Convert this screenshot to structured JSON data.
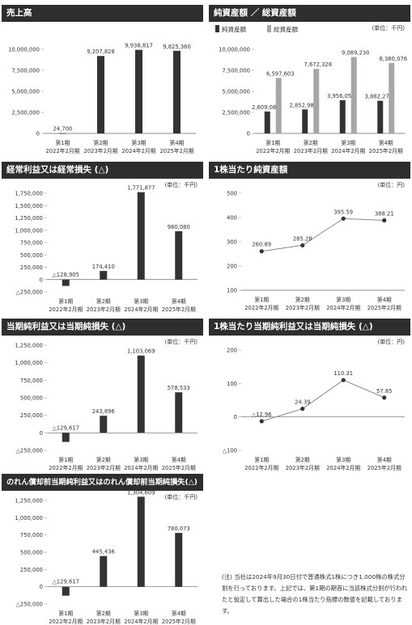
{
  "colors": {
    "header_bg": "#2e2e2e",
    "bar_dark": "#333333",
    "bar_light": "#a6a6a6",
    "line": "#888888",
    "point": "#333333"
  },
  "chart_data": [
    {
      "id": "c1",
      "type": "bar",
      "title": "売上高",
      "unit": "",
      "categories": [
        "第1期\n2022年2月期",
        "第2期\n2023年2月期",
        "第3期\n2024年2月期",
        "第4期\n2025年2月期"
      ],
      "series": [
        {
          "values": [
            24700,
            9207828,
            9938817,
            9825360
          ],
          "labels": [
            "24,700",
            "9,207,828",
            "9,938,817",
            "9,825,360"
          ]
        }
      ],
      "ylim": [
        0,
        10000000
      ],
      "yticks": [
        0,
        2500000,
        5000000,
        7500000,
        10000000
      ],
      "yticklabels": [
        "0",
        "2,500,000",
        "5,000,000",
        "7,500,000",
        "10,000,000"
      ]
    },
    {
      "id": "c2",
      "type": "bar",
      "title": "純資産額 ／ 総資産額",
      "unit": "(単位：千円)",
      "legend": [
        "純資産額",
        "総資産額"
      ],
      "categories": [
        "第1期\n2022年2月期",
        "第2期\n2023年2月期",
        "第3期\n2024年2月期",
        "第4期\n2025年2月期"
      ],
      "series": [
        {
          "name": "純資産額",
          "values": [
            2609087,
            2852983,
            3956053,
            3882271
          ],
          "labels": [
            "2,609,087",
            "2,852,983",
            "3,956,053",
            "3,882,271"
          ]
        },
        {
          "name": "総資産額",
          "values": [
            6597603,
            7672328,
            9089230,
            8380076
          ],
          "labels": [
            "6,597,603",
            "7,672,328",
            "9,089,230",
            "8,380,076"
          ]
        }
      ],
      "ylim": [
        0,
        10000000
      ],
      "yticks": [
        0,
        2500000,
        5000000,
        7500000,
        10000000
      ],
      "yticklabels": [
        "0",
        "2,500,000",
        "5,000,000",
        "7,500,000",
        "10,000,000"
      ]
    },
    {
      "id": "c3",
      "type": "bar",
      "title": "経常利益又は経常損失 (△)",
      "unit": "(単位：千円)",
      "categories": [
        "第1期\n2022年2月期",
        "第2期\n2023年2月期",
        "第3期\n2024年2月期",
        "第4期\n2025年2月期"
      ],
      "series": [
        {
          "values": [
            -128905,
            174410,
            1771877,
            980080
          ],
          "labels": [
            "△128,905",
            "174,410",
            "1,771,877",
            "980,080"
          ]
        }
      ],
      "ylim": [
        -250000,
        1750000
      ],
      "yticks": [
        -250000,
        0,
        250000,
        500000,
        750000,
        1000000,
        1250000,
        1500000,
        1750000
      ],
      "yticklabels": [
        "△250,000",
        "0",
        "250,000",
        "500,000",
        "750,000",
        "1,000,000",
        "1,250,000",
        "1,500,000",
        "1,750,000"
      ]
    },
    {
      "id": "c4",
      "type": "line",
      "title": "1株当たり純資産額",
      "unit": "(単位：円)",
      "categories": [
        "第1期\n2022年2月期",
        "第2期\n2023年2月期",
        "第3期\n2024年2月期",
        "第4期\n2025年2月期"
      ],
      "series": [
        {
          "values": [
            260.89,
            285.28,
            395.59,
            388.21
          ],
          "labels": [
            "260.89",
            "285.28",
            "395.59",
            "388.21"
          ]
        }
      ],
      "ylim": [
        100,
        500
      ],
      "yticks": [
        100,
        200,
        300,
        400,
        500
      ],
      "yticklabels": [
        "100",
        "200",
        "300",
        "400",
        "500"
      ]
    },
    {
      "id": "c5",
      "type": "bar",
      "title": "当期純利益又は当期純損失 (△)",
      "unit": "(単位：千円)",
      "categories": [
        "第1期\n2022年2月期",
        "第2期\n2023年2月期",
        "第3期\n2024年2月期",
        "第4期\n2025年2月期"
      ],
      "series": [
        {
          "values": [
            -129617,
            243896,
            1103069,
            578533
          ],
          "labels": [
            "△129,617",
            "243,896",
            "1,103,069",
            "578,533"
          ]
        }
      ],
      "ylim": [
        -250000,
        1250000
      ],
      "yticks": [
        -250000,
        0,
        250000,
        500000,
        750000,
        1000000,
        1250000
      ],
      "yticklabels": [
        "△250,000",
        "0",
        "250,000",
        "500,000",
        "750,000",
        "1,000,000",
        "1,250,000"
      ]
    },
    {
      "id": "c6",
      "type": "line",
      "title": "1株当たり当期純利益又は当期純損失 (△)",
      "unit": "(単位：円)",
      "categories": [
        "第1期\n2022年2月期",
        "第2期\n2023年2月期",
        "第3期\n2024年2月期",
        "第4期\n2025年2月期"
      ],
      "series": [
        {
          "values": [
            -12.96,
            24.39,
            110.31,
            57.85
          ],
          "labels": [
            "△12.96",
            "24.39",
            "110.31",
            "57.85"
          ]
        }
      ],
      "ylim": [
        -100,
        200
      ],
      "yticks": [
        -100,
        0,
        100,
        200
      ],
      "yticklabels": [
        "△100",
        "0",
        "100",
        "200"
      ]
    },
    {
      "id": "c7",
      "type": "bar",
      "title": "のれん償却前当期純利益又はのれん償却前当期純損失(△)",
      "unit": "(単位：千円)",
      "categories": [
        "第1期\n2022年2月期",
        "第2期\n2023年2月期",
        "第3期\n2024年2月期",
        "第4期\n2025年2月期"
      ],
      "series": [
        {
          "values": [
            -129617,
            445436,
            1304609,
            780073
          ],
          "labels": [
            "△129,617",
            "445,436",
            "1,304,609",
            "780,073"
          ]
        }
      ],
      "ylim": [
        -250000,
        1250000
      ],
      "yticks": [
        -250000,
        0,
        250000,
        500000,
        750000,
        1000000,
        1250000
      ],
      "yticklabels": [
        "△250,000",
        "0",
        "250,000",
        "500,000",
        "750,000",
        "1,000,000",
        "1,250,000"
      ]
    }
  ],
  "note": "(注) 当社は2024年9月30日付で普通株式1株につき1,000株の株式分割を行っております。上記では、第1期の期首に当該株式分割が行われたと仮定して算出した場合の1株当たり指標の数値を記載しております。"
}
